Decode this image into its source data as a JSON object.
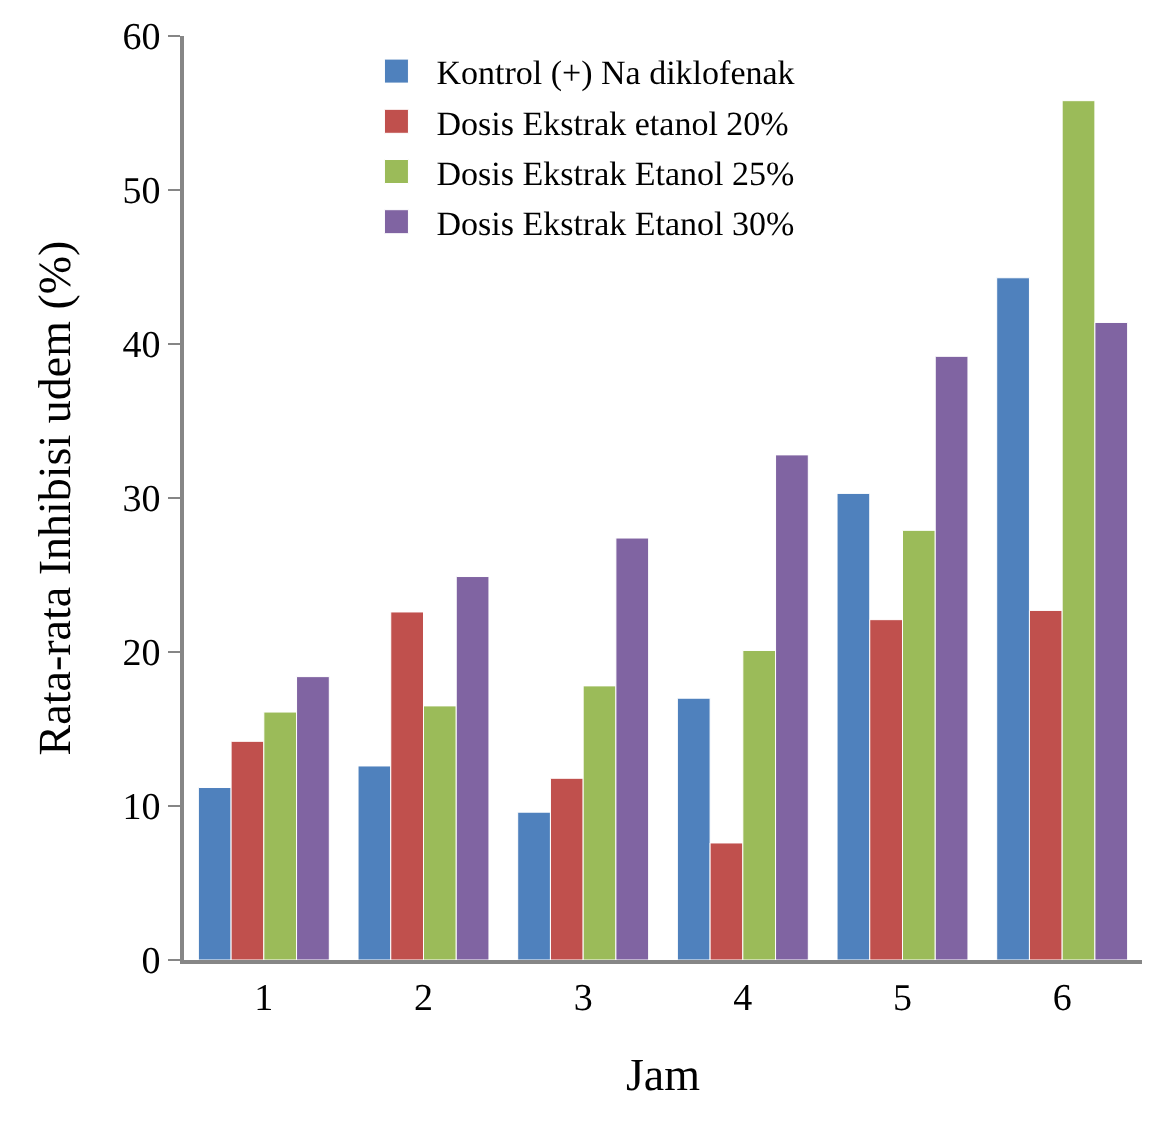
{
  "chart_data": {
    "type": "bar",
    "xlabel": "Jam",
    "ylabel": "Rata-rata Inhibisi udem (%)",
    "categories": [
      "1",
      "2",
      "3",
      "4",
      "5",
      "6"
    ],
    "series": [
      {
        "name": "Kontrol (+) Na diklofenak",
        "color": "#4f81bd",
        "values": [
          11.2,
          12.6,
          9.6,
          17,
          30.3,
          44.3
        ]
      },
      {
        "name": "Dosis Ekstrak etanol 20%",
        "color": "#c0504d",
        "values": [
          14.2,
          22.6,
          11.8,
          7.6,
          22.1,
          22.7
        ]
      },
      {
        "name": "Dosis Ekstrak Etanol 25%",
        "color": "#9bbb59",
        "values": [
          16.1,
          16.5,
          17.8,
          20.1,
          27.9,
          55.8
        ]
      },
      {
        "name": "Dosis Ekstrak Etanol 30%",
        "color": "#8064a2",
        "values": [
          18.4,
          24.9,
          27.4,
          32.8,
          39.2,
          41.4
        ]
      }
    ],
    "ylim": [
      0,
      60
    ],
    "yticks": [
      0,
      10,
      20,
      30,
      40,
      50,
      60
    ],
    "grid": false,
    "legend": "top"
  }
}
